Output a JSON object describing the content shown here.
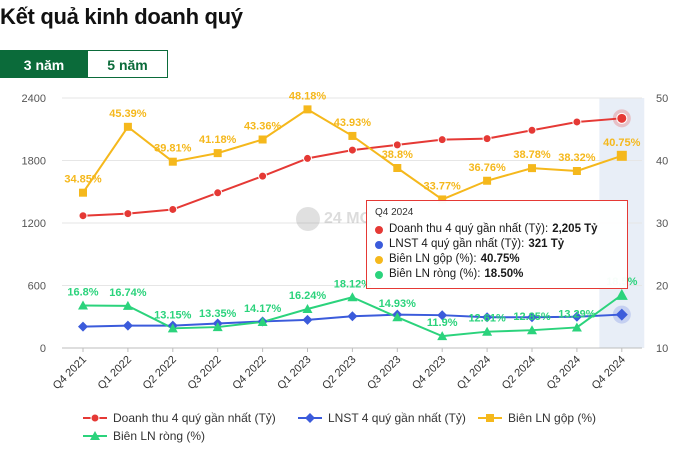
{
  "title": "Kết quả kinh doanh quý",
  "tabs": [
    {
      "label": "3 năm",
      "active": true
    },
    {
      "label": "5 năm",
      "active": false
    }
  ],
  "watermark": "24 MO",
  "colors": {
    "revenue": "#e53935",
    "profit": "#3b5bdb",
    "gross_margin": "#f5b81c",
    "net_margin": "#2bd37c",
    "brand": "#0b6b3a",
    "highlight": "#e8eef7"
  },
  "tooltip": {
    "title": "Q4 2024",
    "rows": [
      {
        "label": "Doanh thu 4 quý gần nhất (Tỷ):",
        "value": "2,205 Tỷ",
        "color": "#e53935"
      },
      {
        "label": "LNST 4 quý gần nhất (Tỷ):",
        "value": "321 Tỷ",
        "color": "#3b5bdb"
      },
      {
        "label": "Biên LN gộp (%):",
        "value": "40.75%",
        "color": "#f5b81c"
      },
      {
        "label": "Biên LN ròng (%):",
        "value": "18.50%",
        "color": "#2bd37c"
      }
    ]
  },
  "chart_data": {
    "type": "line",
    "categories": [
      "Q4 2021",
      "Q1 2022",
      "Q2 2022",
      "Q3 2022",
      "Q4 2022",
      "Q1 2023",
      "Q2 2023",
      "Q3 2023",
      "Q4 2023",
      "Q1 2024",
      "Q2 2024",
      "Q3 2024",
      "Q4 2024"
    ],
    "y_left": {
      "ticks": [
        "0",
        "600",
        "1200",
        "1800",
        "2400"
      ],
      "range": [
        0,
        2400
      ]
    },
    "y_right": {
      "ticks": [
        "10",
        "20",
        "30",
        "40",
        "50"
      ],
      "range": [
        10,
        50
      ]
    },
    "grid": true,
    "legend_position": "bottom",
    "highlighted_category": "Q4 2024",
    "series": [
      {
        "name": "Doanh thu 4 quý gần nhất (Tỷ)",
        "axis": "left",
        "marker": "circle",
        "values": [
          1270,
          1290,
          1330,
          1490,
          1650,
          1820,
          1900,
          1950,
          2000,
          2010,
          2090,
          2170,
          2205
        ]
      },
      {
        "name": "LNST 4 quý gần nhất (Tỷ)",
        "axis": "left",
        "marker": "diamond",
        "values": [
          205,
          215,
          215,
          235,
          255,
          270,
          305,
          320,
          315,
          295,
          295,
          300,
          321
        ]
      },
      {
        "name": "Biên LN gộp (%)",
        "axis": "right",
        "marker": "square",
        "values": [
          34.85,
          45.39,
          39.81,
          41.18,
          43.36,
          48.18,
          43.93,
          38.8,
          33.77,
          36.76,
          38.78,
          38.32,
          40.75
        ],
        "labels": [
          "34.85%",
          "45.39%",
          "39.81%",
          "41.18%",
          "43.36%",
          "48.18%",
          "43.93%",
          "38.8%",
          "33.77%",
          "36.76%",
          "38.78%",
          "38.32%",
          "40.75%"
        ]
      },
      {
        "name": "Biên LN ròng (%)",
        "axis": "right",
        "marker": "triangle",
        "values": [
          16.8,
          16.74,
          13.15,
          13.35,
          14.17,
          16.24,
          18.12,
          14.93,
          11.9,
          12.61,
          12.85,
          13.29,
          18.5
        ],
        "labels": [
          "16.8%",
          "16.74%",
          "13.15%",
          "13.35%",
          "14.17%",
          "16.24%",
          "18.12%",
          "14.93%",
          "11.9%",
          "12.61%",
          "12.85%",
          "13.29%",
          "18.5%"
        ]
      }
    ]
  }
}
